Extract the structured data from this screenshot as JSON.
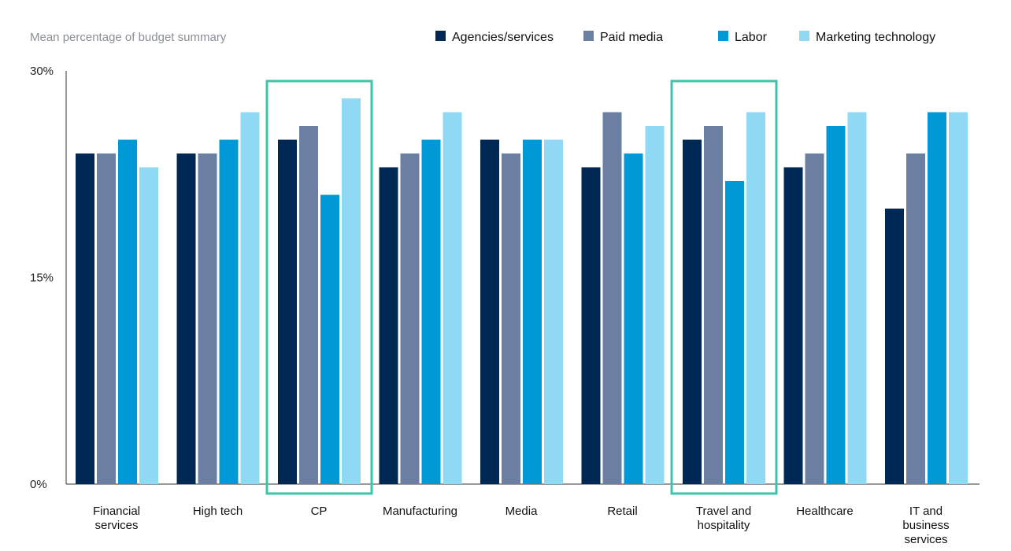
{
  "chart_data": {
    "type": "bar",
    "title": "Mean percentage of budget summary",
    "xlabel": "",
    "ylabel": "",
    "ylim": [
      0,
      30
    ],
    "yticks": [
      {
        "value": 0,
        "label": "0%"
      },
      {
        "value": 15,
        "label": "15%"
      },
      {
        "value": 30,
        "label": "30%"
      }
    ],
    "categories": [
      [
        "Financial",
        "services"
      ],
      [
        "High tech"
      ],
      [
        "CP"
      ],
      [
        "Manufacturing"
      ],
      [
        "Media"
      ],
      [
        "Retail"
      ],
      [
        "Travel and",
        "hospitality"
      ],
      [
        "Healthcare"
      ],
      [
        "IT and",
        "business",
        "services"
      ]
    ],
    "series": [
      {
        "name": "Agencies/services",
        "color": "#002855",
        "values": [
          24,
          24,
          25,
          23,
          25,
          23,
          25,
          23,
          20
        ]
      },
      {
        "name": "Paid media",
        "color": "#6b7fa3",
        "values": [
          24,
          24,
          26,
          24,
          24,
          27,
          26,
          24,
          24
        ]
      },
      {
        "name": "Labor",
        "color": "#0099d8",
        "values": [
          25,
          25,
          21,
          25,
          25,
          24,
          22,
          26,
          27
        ]
      },
      {
        "name": "Marketing technology",
        "color": "#8fd9f5",
        "values": [
          23,
          27,
          28,
          27,
          25,
          26,
          27,
          27,
          27
        ]
      }
    ],
    "highlighted_categories": [
      2,
      6
    ],
    "highlight_color": "#3cc4a8",
    "legend_position": "top-right",
    "grid": false
  }
}
